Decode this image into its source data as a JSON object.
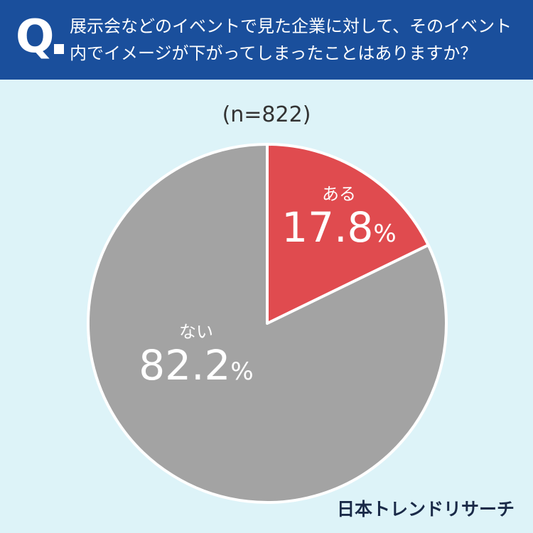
{
  "question": {
    "mark": "Q",
    "line1": "展示会などのイベントで見た企業に対して、そのイベント",
    "line2": "内でイメージが下がってしまったことはありますか？"
  },
  "sample_size": "(n=822)",
  "brand": "日本トレンドリサーチ",
  "colors": {
    "header": "#1a4f9c",
    "background": "#ddf3f8",
    "aru": "#e04b4f",
    "nai": "#a3a3a3"
  },
  "chart_data": {
    "type": "pie",
    "unit": "%",
    "slices": [
      {
        "label": "ある",
        "value": 17.8,
        "display": "17.8",
        "color": "#e04b4f"
      },
      {
        "label": "ない",
        "value": 82.2,
        "display": "82.2",
        "color": "#a3a3a3"
      }
    ]
  }
}
